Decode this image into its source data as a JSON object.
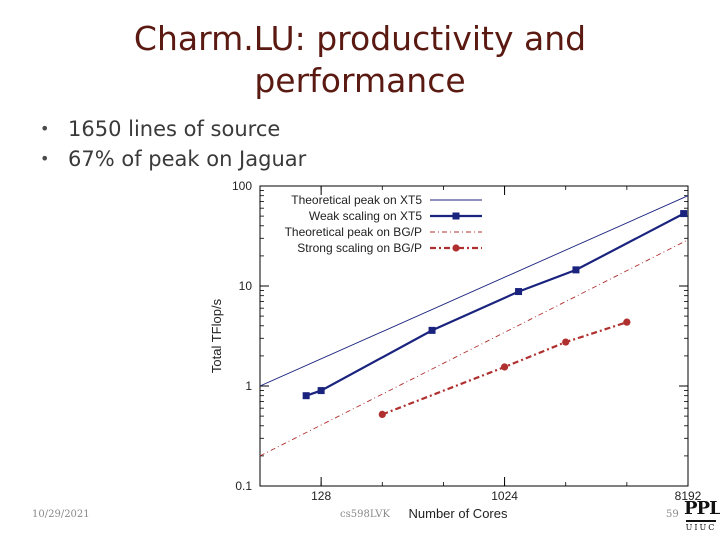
{
  "slide": {
    "title_line1": "Charm.LU: productivity and",
    "title_line2": "performance",
    "bullets": [
      "1650 lines of source",
      "67% of peak on Jaguar"
    ],
    "bullet_glyph": "•",
    "footer_date": "10/29/2021",
    "footer_course": "cs598LVK",
    "page_number": "59",
    "logo_text": "PPL",
    "logo_subtext": "UIUC"
  },
  "colors": {
    "title": "#5a1a12",
    "xt5": "#1a237e",
    "bgp": "#b03030"
  },
  "chart_data": {
    "type": "line",
    "xscale": "log2",
    "yscale": "log10",
    "xlim": [
      64,
      8192
    ],
    "ylim": [
      0.1,
      100
    ],
    "xlabel": "Number of Cores",
    "ylabel": "Total TFlop/s",
    "xticks": [
      {
        "value": 128,
        "label": "128"
      },
      {
        "value": 1024,
        "label": "1024"
      },
      {
        "value": 8192,
        "label": "8192"
      }
    ],
    "yticks": [
      {
        "value": 0.1,
        "label": "0.1"
      },
      {
        "value": 1,
        "label": "1"
      },
      {
        "value": 10,
        "label": "10"
      },
      {
        "value": 100,
        "label": "100"
      }
    ],
    "legend_position": "top-left",
    "series": [
      {
        "name": "Theoretical peak on XT5",
        "style": "solid-thin",
        "color": "#1a237e",
        "marker": "none",
        "x": [
          64,
          8192
        ],
        "y": [
          1.0,
          80
        ]
      },
      {
        "name": "Weak scaling on XT5",
        "style": "solid-thick",
        "color": "#1a237e",
        "marker": "square",
        "x": [
          108,
          128,
          450,
          1200,
          2300,
          7800
        ],
        "y": [
          0.8,
          0.9,
          3.6,
          8.8,
          14.5,
          53
        ]
      },
      {
        "name": "Theoretical peak on BG/P",
        "style": "dashdot-thin",
        "color": "#b03030",
        "marker": "none",
        "x": [
          64,
          8192
        ],
        "y": [
          0.2,
          29
        ]
      },
      {
        "name": "Strong scaling on BG/P",
        "style": "dashdot-thick",
        "color": "#b03030",
        "marker": "circle",
        "x": [
          256,
          1024,
          2048,
          4096
        ],
        "y": [
          0.52,
          1.55,
          2.75,
          4.35
        ]
      }
    ]
  }
}
